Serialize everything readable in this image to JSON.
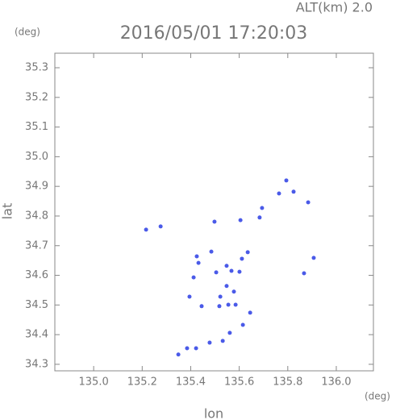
{
  "chart_data": {
    "type": "scatter",
    "title": "2016/05/01 17:20:03",
    "subtitle": "ALT(km) 2.0",
    "x_label": "lon",
    "y_label": "lat",
    "x_unit": "(deg)",
    "y_unit": "(deg)",
    "color": "#4a5ae8",
    "x": [
      135.276,
      135.216,
      135.794,
      135.764,
      135.824,
      135.884,
      135.694,
      135.684,
      135.605,
      135.498,
      135.635,
      135.611,
      135.485,
      135.425,
      135.432,
      135.412,
      135.548,
      135.568,
      135.505,
      135.907,
      135.867,
      135.601,
      135.548,
      135.578,
      135.395,
      135.522,
      135.518,
      135.555,
      135.585,
      135.645,
      135.445,
      135.615,
      135.561,
      135.532,
      135.478,
      135.422,
      135.385,
      135.349
    ],
    "values": [
      34.765,
      34.754,
      34.92,
      34.876,
      34.882,
      34.846,
      34.827,
      34.795,
      34.786,
      34.781,
      34.678,
      34.656,
      34.68,
      34.664,
      34.642,
      34.593,
      34.632,
      34.615,
      34.61,
      34.659,
      34.607,
      34.612,
      34.564,
      34.545,
      34.528,
      34.528,
      34.496,
      34.501,
      34.501,
      34.474,
      34.496,
      34.433,
      34.406,
      34.379,
      34.373,
      34.354,
      34.354,
      34.333
    ],
    "xlim": [
      134.84,
      136.153
    ],
    "ylim": [
      34.278,
      35.349
    ],
    "xticks": [
      {
        "value": 135.0,
        "label": "135.0"
      },
      135.2,
      135.4,
      135.6,
      135.8,
      {
        "value": 136.0,
        "label": "136.0"
      }
    ],
    "yticks": [
      34.3,
      34.4,
      34.5,
      34.6,
      34.7,
      34.8,
      34.9,
      {
        "value": 35.0,
        "label": "35.0"
      },
      35.1,
      35.2,
      35.3
    ]
  }
}
